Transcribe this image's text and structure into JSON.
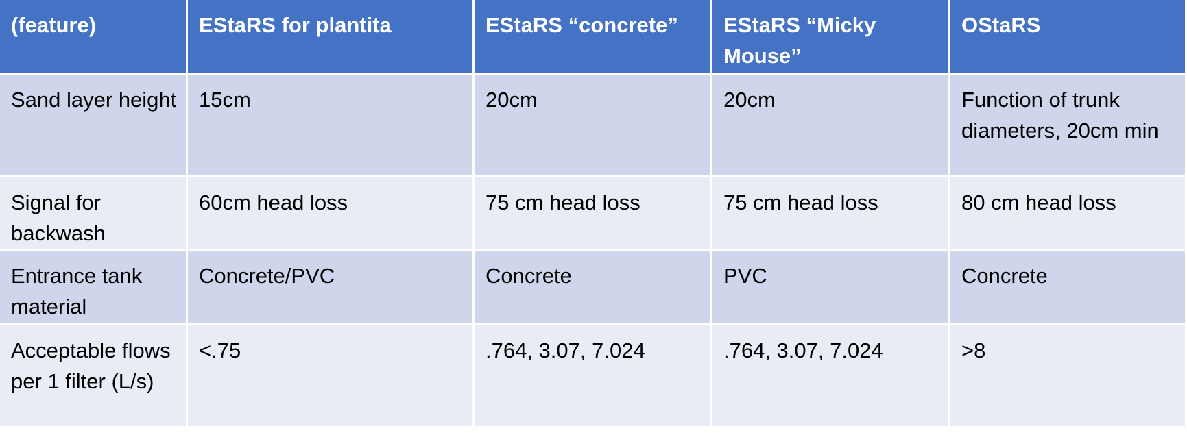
{
  "table": {
    "headers": [
      "(feature)",
      "EStaRS for plantita",
      "EStaRS “concrete”",
      "EStaRS “Micky Mouse”",
      "OStaRS"
    ],
    "rows": [
      [
        "Sand layer height",
        "15cm",
        "20cm",
        "20cm",
        "Function of trunk diameters, 20cm min"
      ],
      [
        "Signal for backwash",
        "60cm head loss",
        "75 cm head loss",
        "75 cm head loss",
        "80 cm head loss"
      ],
      [
        "Entrance tank material",
        "Concrete/PVC",
        "Concrete",
        "PVC",
        "Concrete"
      ],
      [
        "Acceptable flows per 1 filter (L/s)",
        "<.75",
        ".764, 3.07,  7.024",
        ".764, 3.07, 7.024",
        ">8"
      ]
    ]
  },
  "colors": {
    "header_bg": "#4472c4",
    "row_dark": "#cfd5ea",
    "row_light": "#e9ebf5",
    "border": "#ffffff"
  }
}
